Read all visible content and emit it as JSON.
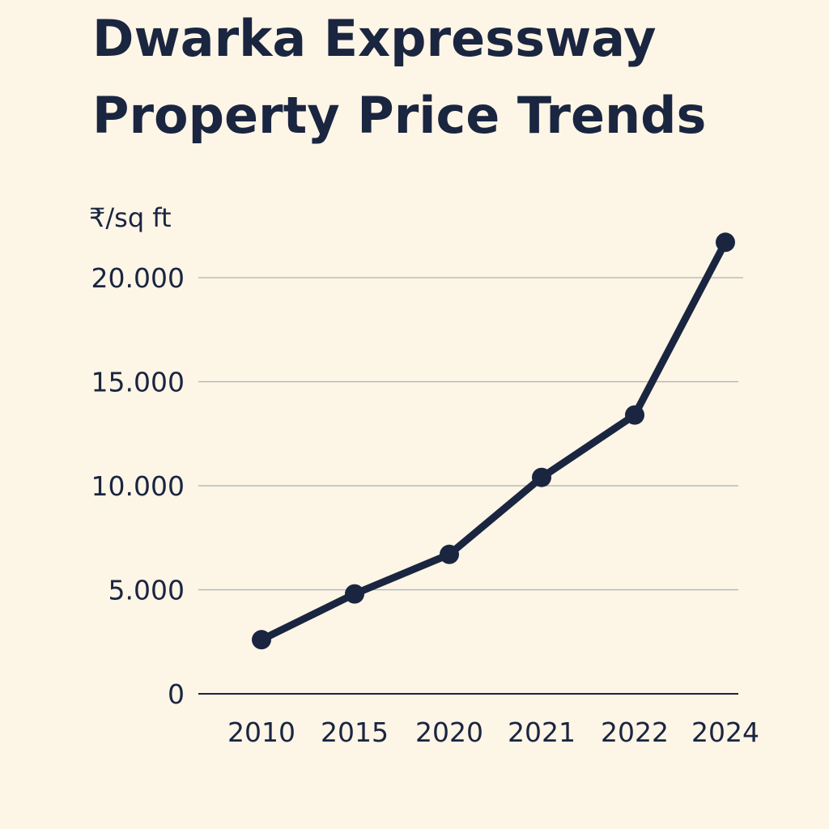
{
  "chart_data": {
    "type": "line",
    "title": [
      "Dwarka Expressway",
      "Property Price Trends"
    ],
    "ylabel": "₹/sq ft",
    "xlabel": "",
    "categories": [
      "2010",
      "2015",
      "2020",
      "2021",
      "2022",
      "2024"
    ],
    "series": [
      {
        "values": [
          2600,
          4800,
          6700,
          10400,
          13400,
          21700
        ]
      }
    ],
    "yticks": [
      0,
      5000,
      10000,
      15000,
      20000
    ],
    "ytick_labels": [
      "0",
      "5.000",
      "10.000",
      "15.000",
      "20.000"
    ],
    "ylim": [
      0,
      22000
    ],
    "grid": true,
    "legend": "none",
    "colors": {
      "background": "#fdf5e6",
      "line": "#1a2540",
      "grid": "#a9b4b4",
      "axis": "#1a2540",
      "text": "#1a2540"
    }
  }
}
